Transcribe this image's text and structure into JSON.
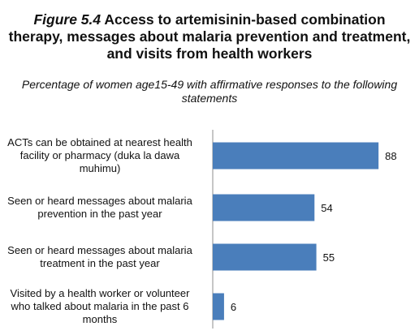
{
  "title": {
    "figure_number": "Figure 5.4",
    "text": "Access to artemisinin-based combination therapy, messages about malaria prevention and treatment, and visits from health workers"
  },
  "subtitle": "Percentage of women age15-49 with affirmative responses to the following statements",
  "colors": {
    "bar": "#4a7ebb",
    "axis": "#8c8c8c"
  },
  "chart_data": {
    "type": "bar",
    "orientation": "horizontal",
    "title": "Figure 5.4 Access to artemisinin-based combination therapy, messages about malaria prevention and treatment, and visits from health workers",
    "subtitle": "Percentage of women age15-49 with affirmative responses to the following statements",
    "categories": [
      "ACTs can be obtained at nearest health facility or pharmacy (duka la dawa muhimu)",
      "Seen or heard messages about malaria prevention in the past year",
      "Seen or heard messages about malaria treatment in the past year",
      "Visited by a health worker or volunteer who talked about malaria in the past 6 months"
    ],
    "values": [
      88,
      54,
      55,
      6
    ],
    "data_labels": [
      "88",
      "54",
      "55",
      "6"
    ],
    "xlim": [
      0,
      100
    ],
    "grid": false,
    "legend": "none"
  }
}
